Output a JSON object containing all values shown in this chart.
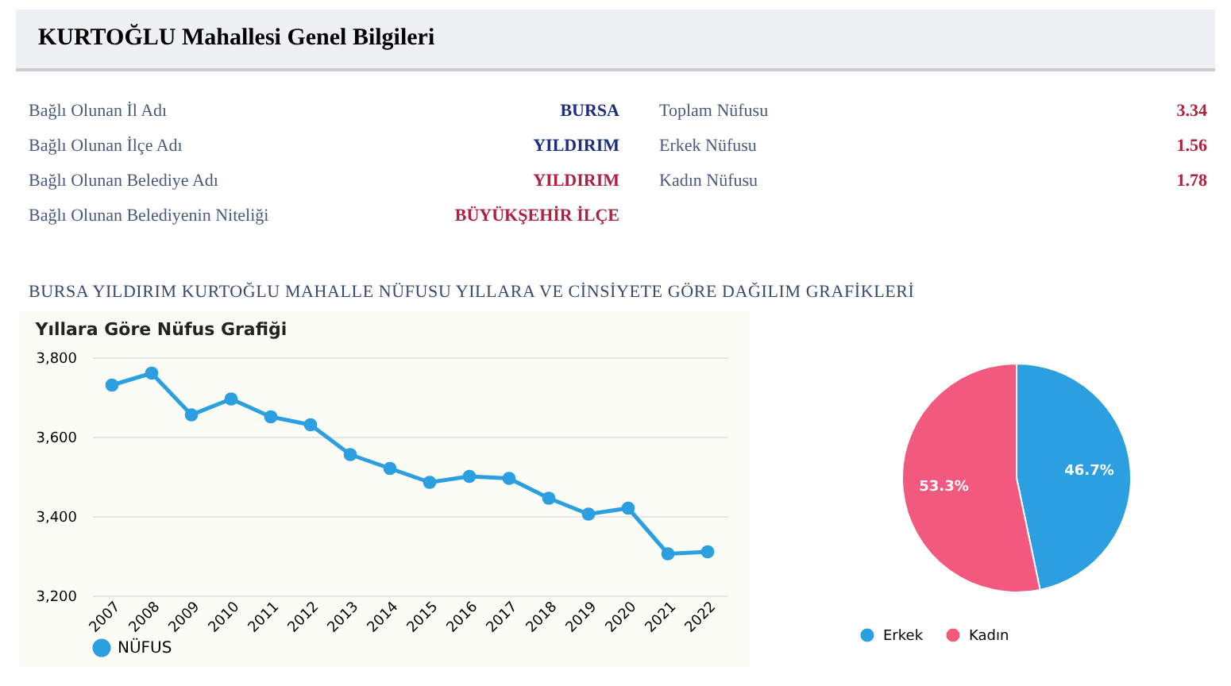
{
  "chart_data": [
    {
      "type": "other",
      "title": "KURTOĞLU Mahallesi Genel Bilgileri",
      "annotations": [
        "Bağlı Olunan İl Adı",
        "BURSA",
        "Bağlı Olunan İlçe Adı",
        "YILDIRIM",
        "Bağlı Olunan Belediye Adı",
        "YILDIRIM",
        "Bağlı Olunan Belediyenin Niteliği",
        "BÜYÜKŞEHİR İLÇE",
        "Toplam Nüfusu",
        "3.34",
        "Erkek Nüfusu",
        "1.56",
        "Kadın Nüfusu",
        "1.78",
        "BURSA YILDIRIM KURTOĞLU MAHALLE NÜFUSU YILLARA VE CİNSİYETE GÖRE DAĞILIM GRAFİKLERİ"
      ]
    },
    {
      "type": "line",
      "title": "Yıllara Göre Nüfus Grafiği",
      "categories": [
        "2007",
        "2008",
        "2009",
        "2010",
        "2011",
        "2012",
        "2013",
        "2014",
        "2015",
        "2016",
        "2017",
        "2018",
        "2019",
        "2020",
        "2021",
        "2022"
      ],
      "series": [
        {
          "name": "NÜFUS",
          "color": "#2b9fe0",
          "values": [
            3730,
            3760,
            3655,
            3695,
            3650,
            3630,
            3555,
            3520,
            3485,
            3500,
            3495,
            3445,
            3405,
            3420,
            3305,
            3310
          ]
        }
      ],
      "ylim": [
        3200,
        3800
      ],
      "yticks": [
        {
          "value": 3200,
          "label": "3,200"
        },
        {
          "value": 3400,
          "label": "3,400"
        },
        {
          "value": 3600,
          "label": "3,600"
        },
        {
          "value": 3800,
          "label": "3,800"
        }
      ],
      "grid": "y",
      "legend": "bottom",
      "marker": "circle",
      "line_style": "solid"
    },
    {
      "type": "pie",
      "categories": [
        "Erkek",
        "Kadın"
      ],
      "values": [
        46.7,
        53.3
      ],
      "colors": [
        "#2b9fe0",
        "#f2597f"
      ],
      "value_labels": [
        "46.7%",
        "53.3%"
      ],
      "legend": "bottom"
    }
  ]
}
